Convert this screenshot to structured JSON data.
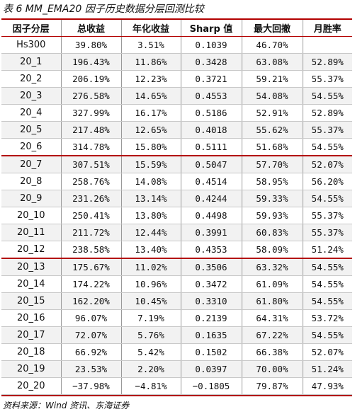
{
  "title": "表 6 MM_EMA20 因子历史数据分层回测比较",
  "headers": [
    "因子分层",
    "总收益",
    "年化收益",
    "Sharp 值",
    "最大回撤",
    "月胜率"
  ],
  "rows": [
    [
      "Hs300",
      "39.80%",
      "3.51%",
      "0.1039",
      "46.70%",
      ""
    ],
    [
      "20_1",
      "196.43%",
      "11.86%",
      "0.3428",
      "63.08%",
      "52.89%"
    ],
    [
      "20_2",
      "206.19%",
      "12.23%",
      "0.3721",
      "59.21%",
      "55.37%"
    ],
    [
      "20_3",
      "276.58%",
      "14.65%",
      "0.4553",
      "54.08%",
      "54.55%"
    ],
    [
      "20_4",
      "327.99%",
      "16.17%",
      "0.5186",
      "52.91%",
      "52.89%"
    ],
    [
      "20_5",
      "217.48%",
      "12.65%",
      "0.4018",
      "55.62%",
      "55.37%"
    ],
    [
      "20_6",
      "314.78%",
      "15.80%",
      "0.5111",
      "51.68%",
      "54.55%"
    ],
    [
      "20_7",
      "307.51%",
      "15.59%",
      "0.5047",
      "57.70%",
      "52.07%"
    ],
    [
      "20_8",
      "258.76%",
      "14.08%",
      "0.4514",
      "58.95%",
      "56.20%"
    ],
    [
      "20_9",
      "231.26%",
      "13.14%",
      "0.4244",
      "59.33%",
      "54.55%"
    ],
    [
      "20_10",
      "250.41%",
      "13.80%",
      "0.4498",
      "59.93%",
      "55.37%"
    ],
    [
      "20_11",
      "211.72%",
      "12.44%",
      "0.3991",
      "60.83%",
      "55.37%"
    ],
    [
      "20_12",
      "238.58%",
      "13.40%",
      "0.4353",
      "58.09%",
      "51.24%"
    ],
    [
      "20_13",
      "175.67%",
      "11.02%",
      "0.3506",
      "63.32%",
      "54.55%"
    ],
    [
      "20_14",
      "174.22%",
      "10.96%",
      "0.3472",
      "61.09%",
      "54.55%"
    ],
    [
      "20_15",
      "162.20%",
      "10.45%",
      "0.3310",
      "61.80%",
      "54.55%"
    ],
    [
      "20_16",
      "96.07%",
      "7.19%",
      "0.2139",
      "64.31%",
      "53.72%"
    ],
    [
      "20_17",
      "72.07%",
      "5.76%",
      "0.1635",
      "67.22%",
      "54.55%"
    ],
    [
      "20_18",
      "66.92%",
      "5.42%",
      "0.1502",
      "66.38%",
      "52.07%"
    ],
    [
      "20_19",
      "23.53%",
      "2.20%",
      "0.0397",
      "70.00%",
      "51.24%"
    ],
    [
      "20_20",
      "−37.98%",
      "−4.81%",
      "−0.1805",
      "79.87%",
      "47.93%"
    ]
  ],
  "source": "资料来源：Wind 资讯、东海证券",
  "colors": {
    "rule": "#b30000",
    "stripe": "#f2f2f2"
  }
}
